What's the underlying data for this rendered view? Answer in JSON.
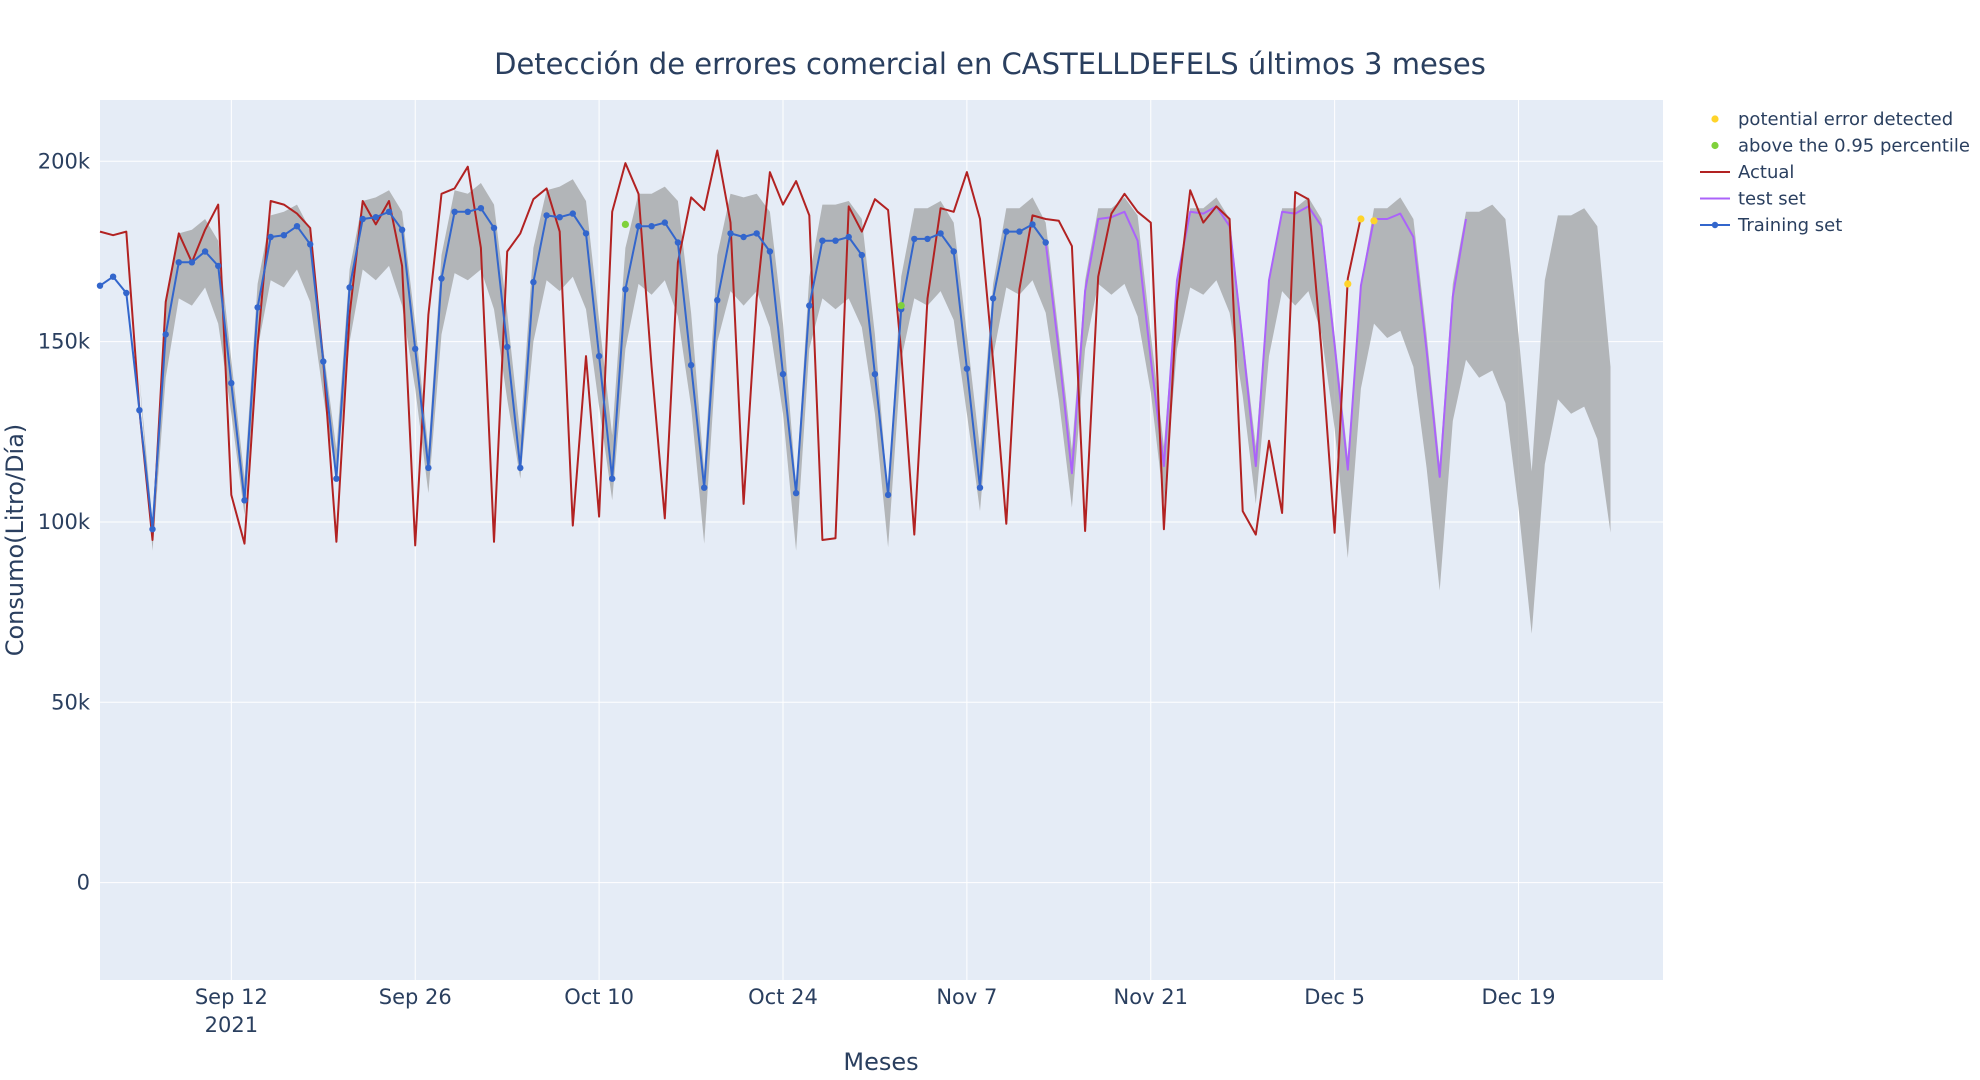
{
  "chart_data": {
    "type": "line",
    "title": "Detección de errores comercial en CASTELLDEFELS últimos 3 meses",
    "xlabel": "Meses",
    "ylabel": "Consumo(Litro/Día)",
    "x_start": "2021-09-02",
    "x_range": [
      "2021-09-02",
      "2021-12-30"
    ],
    "ylim": [
      -27000,
      217000
    ],
    "x_ticks": [
      {
        "date": "2021-09-12",
        "label": "Sep 12",
        "sublabel": "2021"
      },
      {
        "date": "2021-09-26",
        "label": "Sep 26",
        "sublabel": ""
      },
      {
        "date": "2021-10-10",
        "label": "Oct 10",
        "sublabel": ""
      },
      {
        "date": "2021-10-24",
        "label": "Oct 24",
        "sublabel": ""
      },
      {
        "date": "2021-11-07",
        "label": "Nov 7",
        "sublabel": ""
      },
      {
        "date": "2021-11-21",
        "label": "Nov 21",
        "sublabel": ""
      },
      {
        "date": "2021-12-05",
        "label": "Dec 5",
        "sublabel": ""
      },
      {
        "date": "2021-12-19",
        "label": "Dec 19",
        "sublabel": ""
      }
    ],
    "y_ticks": [
      {
        "value": 0,
        "label": "0"
      },
      {
        "value": 50000,
        "label": "50k"
      },
      {
        "value": 100000,
        "label": "100k"
      },
      {
        "value": 150000,
        "label": "150k"
      },
      {
        "value": 200000,
        "label": "200k"
      }
    ],
    "grid": true,
    "legend_position": "top-right",
    "band_upper": [
      175000,
      178000,
      174000,
      140000,
      92000,
      140000,
      162000,
      160000,
      165000,
      155000,
      130000,
      102000,
      148000,
      167000,
      165000,
      170000,
      161000,
      135000,
      112000,
      150000,
      170000,
      167000,
      171000,
      160000,
      137000,
      108000,
      152000,
      169000,
      167000,
      170000,
      159000,
      134000,
      112000,
      150000,
      167000,
      164000,
      168000,
      159000,
      132000,
      106000,
      148000,
      166000,
      163000,
      167000,
      157000,
      132000,
      94000,
      150000,
      164000,
      160000,
      164000,
      154000,
      130000,
      92000,
      148000,
      162000,
      159000,
      162000,
      154000,
      130000,
      93000,
      145000,
      162000,
      160000,
      164000,
      156000,
      130000,
      103000,
      146000,
      165000,
      163000,
      167000,
      158000,
      134000,
      104000,
      148000,
      166000,
      163000,
      166000,
      157000,
      136000,
      105000,
      148000,
      165000,
      163000,
      167000,
      158000,
      135000,
      105000,
      146000,
      164000,
      160000,
      164000,
      152000,
      126000,
      90000,
      137000,
      155000,
      151000,
      153000,
      143000,
      115000,
      81000,
      128000,
      145000,
      140000,
      142000,
      133000,
      104000,
      69000,
      116000,
      134000,
      130000,
      132000,
      123000,
      97000
    ],
    "band_lower": [
      175000,
      178000,
      174000,
      140000,
      92000,
      140000,
      162000,
      160000,
      165000,
      155000,
      130000,
      102000,
      148000,
      167000,
      165000,
      170000,
      161000,
      135000,
      112000,
      150000,
      170000,
      167000,
      171000,
      160000,
      137000,
      108000,
      152000,
      169000,
      167000,
      170000,
      159000,
      134000,
      112000,
      150000,
      167000,
      164000,
      168000,
      159000,
      132000,
      106000,
      148000,
      166000,
      163000,
      167000,
      157000,
      132000,
      94000,
      150000,
      164000,
      160000,
      164000,
      154000,
      130000,
      92000,
      148000,
      162000,
      159000,
      162000,
      154000,
      130000,
      93000,
      145000,
      162000,
      160000,
      164000,
      156000,
      130000,
      103000,
      146000,
      165000,
      163000,
      167000,
      158000,
      134000,
      104000,
      148000,
      166000,
      163000,
      166000,
      157000,
      136000,
      105000,
      148000,
      165000,
      163000,
      167000,
      158000,
      135000,
      105000,
      146000,
      164000,
      160000,
      164000,
      152000,
      126000,
      90000,
      137000,
      155000,
      151000,
      153000,
      143000,
      115000,
      81000,
      128000,
      145000,
      140000,
      142000,
      133000,
      104000,
      69000,
      116000,
      134000,
      130000,
      132000,
      123000,
      97000
    ],
    "band_upper_values": [
      175000,
      178000,
      174000,
      140000,
      100000,
      162000,
      180000,
      181000,
      184000,
      178000,
      145000,
      112000,
      166000,
      185000,
      186000,
      188000,
      181000,
      148000,
      120000,
      170000,
      189000,
      190000,
      192000,
      186000,
      155000,
      120000,
      174000,
      192000,
      191000,
      194000,
      188000,
      158000,
      124000,
      176000,
      192000,
      193000,
      195000,
      189000,
      156000,
      124000,
      176000,
      191000,
      191000,
      193000,
      189000,
      158000,
      114000,
      174000,
      191000,
      190000,
      191000,
      186000,
      155000,
      110000,
      168000,
      188000,
      188000,
      189000,
      184000,
      152000,
      107000,
      168000,
      187000,
      187000,
      189000,
      183000,
      152000,
      120000,
      166000,
      187000,
      187000,
      190000,
      183000,
      152000,
      120000,
      167000,
      187000,
      187000,
      190000,
      185000,
      152000,
      121000,
      167000,
      187000,
      187000,
      190000,
      184000,
      152000,
      121000,
      166000,
      187000,
      187000,
      190000,
      184000,
      152000,
      118000,
      166000,
      187000,
      187000,
      190000,
      184000,
      152000,
      116000,
      166000,
      186000,
      186000,
      188000,
      184000,
      152000,
      114000,
      167000,
      185000,
      185000,
      187000,
      182000,
      143000
    ],
    "series": [
      {
        "name": "Training set",
        "color": "#3366cc",
        "values": [
          165500,
          168000,
          163500,
          131000,
          98000,
          152000,
          172000,
          172000,
          175000,
          171000,
          138500,
          106000,
          159500,
          179000,
          179500,
          182000,
          177000,
          144500,
          112000,
          165000,
          184000,
          184500,
          186000,
          181000,
          148000,
          115000,
          167500,
          186000,
          186000,
          187000,
          181500,
          148500,
          115000,
          166500,
          185000,
          184500,
          185500,
          180000,
          146000,
          112000,
          164500,
          182000,
          182000,
          183000,
          177500,
          143500,
          109500,
          161500,
          180000,
          179000,
          180000,
          175000,
          141000,
          108000,
          160000,
          178000,
          178000,
          179000,
          174000,
          141000,
          107500,
          159000,
          178500,
          178500,
          180000,
          175000,
          142500,
          109500,
          162000,
          180500,
          180500,
          182500,
          177500
        ]
      },
      {
        "name": "test set",
        "color": "#ab63fa",
        "values": [
          null,
          null,
          null,
          null,
          null,
          null,
          null,
          null,
          null,
          null,
          null,
          null,
          null,
          null,
          null,
          null,
          null,
          null,
          null,
          null,
          null,
          null,
          null,
          null,
          null,
          null,
          null,
          null,
          null,
          null,
          null,
          null,
          null,
          null,
          null,
          null,
          null,
          null,
          null,
          null,
          null,
          null,
          null,
          null,
          null,
          null,
          null,
          null,
          null,
          null,
          null,
          null,
          null,
          null,
          null,
          null,
          null,
          null,
          null,
          null,
          null,
          null,
          null,
          null,
          null,
          null,
          null,
          null,
          null,
          null,
          null,
          null,
          177500,
          147500,
          113500,
          164000,
          184000,
          184500,
          186000,
          178000,
          145000,
          115500,
          167000,
          186000,
          185500,
          187500,
          182000,
          150000,
          115500,
          167000,
          186000,
          185500,
          187500,
          182000,
          149000,
          114500,
          165500,
          184000,
          184000,
          185500,
          179000,
          147500,
          112500,
          162500,
          184000
        ]
      },
      {
        "name": "Actual",
        "color": "#b22222",
        "values": [
          180500,
          179500,
          180500,
          131000,
          95000,
          161000,
          180000,
          172000,
          181000,
          188000,
          107500,
          94000,
          149000,
          189000,
          188000,
          185500,
          181500,
          144500,
          94500,
          157500,
          189000,
          182500,
          189000,
          171000,
          93500,
          157500,
          191000,
          192500,
          198500,
          176000,
          94500,
          175000,
          180000,
          189500,
          192500,
          180500,
          99000,
          146000,
          101500,
          186000,
          199500,
          191000,
          143000,
          101000,
          172000,
          190000,
          186500,
          203000,
          183000,
          105000,
          162000,
          197000,
          188000,
          194500,
          185000,
          95000,
          95500,
          187500,
          180500,
          189500,
          186500,
          147000,
          96500,
          162000,
          187000,
          186000,
          197000,
          184000,
          144500,
          99500,
          164500,
          185000,
          184000,
          183500,
          176500,
          97500,
          168000,
          185500,
          191000,
          186000,
          183000,
          98000,
          161000,
          192000,
          183000,
          187500,
          184000,
          103000,
          96500,
          122500,
          102500,
          191500,
          189500,
          147500,
          97000,
          167500,
          184500
        ]
      }
    ],
    "markers": [
      {
        "name": "potential error detected",
        "color": "#ffd42a",
        "points": [
          {
            "date": "2021-12-06",
            "value": 166000
          },
          {
            "date": "2021-12-07",
            "value": 184000
          },
          {
            "date": "2021-12-08",
            "value": 183500
          }
        ]
      },
      {
        "name": "above the 0.95 percentile",
        "color": "#7fd13b",
        "points": [
          {
            "date": "2021-10-12",
            "value": 182500
          },
          {
            "date": "2021-11-02",
            "value": 160000
          }
        ]
      }
    ],
    "legend": [
      {
        "name": "potential error detected",
        "kind": "marker",
        "color": "#ffd42a"
      },
      {
        "name": "above the 0.95 percentile",
        "kind": "marker",
        "color": "#7fd13b"
      },
      {
        "name": "Actual",
        "kind": "line",
        "color": "#b22222"
      },
      {
        "name": "test set",
        "kind": "line",
        "color": "#ab63fa"
      },
      {
        "name": "Training set",
        "kind": "line+marker",
        "color": "#3366cc"
      }
    ],
    "colors": {
      "plot_background": "#e5ecf6",
      "band_fill": "#a9abad",
      "grid": "#ffffff",
      "text": "#2a3f5f"
    }
  }
}
